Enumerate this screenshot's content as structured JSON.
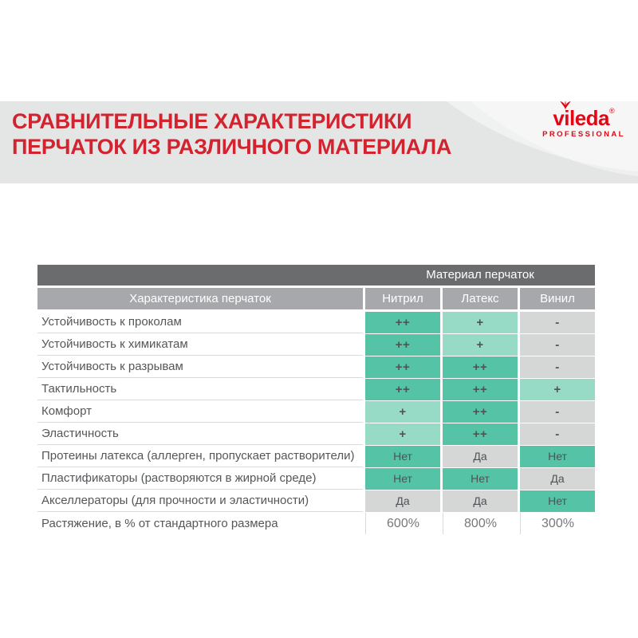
{
  "colors": {
    "banner_bg": "#e4e5e5",
    "title_red": "#d2232f",
    "logo_red": "#e30613",
    "header_dark": "#6a6c6e",
    "header_light": "#a6a8ab",
    "green_strong": "#55c3a5",
    "green_light": "#97dac5",
    "cell_gray": "#d5d6d6",
    "text_label": "#54575a",
    "text_cell": "#4e5356",
    "text_pct": "#75787b",
    "line": "#d9dadb"
  },
  "header": {
    "title_line1": "СРАВНИТЕЛЬНЫЕ ХАРАКТЕРИСТИКИ",
    "title_line2": "ПЕРЧАТОК ИЗ РАЗЛИЧНОГО МАТЕРИАЛА",
    "logo": {
      "brand": "vileda",
      "registered": "®",
      "subtitle": "PROFESSIONAL"
    }
  },
  "table": {
    "group_header": "Материал перчаток",
    "characteristic_header": "Характеристика перчаток",
    "materials": [
      "Нитрил",
      "Латекс",
      "Винил"
    ],
    "rows": [
      {
        "label": "Устойчивость к проколам",
        "cells": [
          {
            "v": "++",
            "tone": "strong"
          },
          {
            "v": "+",
            "tone": "light"
          },
          {
            "v": "-",
            "tone": "gray"
          }
        ]
      },
      {
        "label": "Устойчивость к химикатам",
        "cells": [
          {
            "v": "++",
            "tone": "strong"
          },
          {
            "v": "+",
            "tone": "light"
          },
          {
            "v": "-",
            "tone": "gray"
          }
        ]
      },
      {
        "label": "Устойчивость к разрывам",
        "cells": [
          {
            "v": "++",
            "tone": "strong"
          },
          {
            "v": "++",
            "tone": "strong"
          },
          {
            "v": "-",
            "tone": "gray"
          }
        ]
      },
      {
        "label": "Тактильность",
        "cells": [
          {
            "v": "++",
            "tone": "strong"
          },
          {
            "v": "++",
            "tone": "strong"
          },
          {
            "v": "+",
            "tone": "light"
          }
        ]
      },
      {
        "label": "Комфорт",
        "cells": [
          {
            "v": "+",
            "tone": "light"
          },
          {
            "v": "++",
            "tone": "strong"
          },
          {
            "v": "-",
            "tone": "gray"
          }
        ]
      },
      {
        "label": "Эластичность",
        "cells": [
          {
            "v": "+",
            "tone": "light"
          },
          {
            "v": "++",
            "tone": "strong"
          },
          {
            "v": "-",
            "tone": "gray"
          }
        ]
      },
      {
        "label": "Протеины латекса (аллерген, пропускает растворители)",
        "cells": [
          {
            "v": "Нет",
            "tone": "strong"
          },
          {
            "v": "Да",
            "tone": "gray"
          },
          {
            "v": "Нет",
            "tone": "strong"
          }
        ]
      },
      {
        "label": "Пластификаторы (растворяются в жирной среде)",
        "cells": [
          {
            "v": "Нет",
            "tone": "strong"
          },
          {
            "v": "Нет",
            "tone": "strong"
          },
          {
            "v": "Да",
            "tone": "gray"
          }
        ]
      },
      {
        "label": "Акселлераторы (для прочности и эластичности)",
        "cells": [
          {
            "v": "Да",
            "tone": "gray"
          },
          {
            "v": "Да",
            "tone": "gray"
          },
          {
            "v": "Нет",
            "tone": "strong"
          }
        ]
      },
      {
        "label": "Растяжение, в % от стандартного размера",
        "cells": [
          {
            "v": "600%",
            "tone": "none"
          },
          {
            "v": "800%",
            "tone": "none"
          },
          {
            "v": "300%",
            "tone": "none"
          }
        ]
      }
    ]
  }
}
